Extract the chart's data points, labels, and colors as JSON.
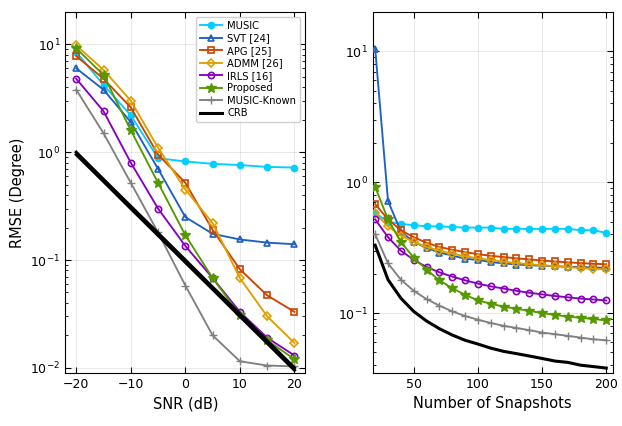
{
  "snr_x": [
    -20,
    -15,
    -10,
    -5,
    0,
    5,
    10,
    15,
    20
  ],
  "snr_music": [
    8.5,
    4.2,
    2.2,
    0.88,
    0.82,
    0.78,
    0.76,
    0.73,
    0.72
  ],
  "snr_svt": [
    6.0,
    3.8,
    1.9,
    0.7,
    0.25,
    0.175,
    0.155,
    0.145,
    0.14
  ],
  "snr_apg": [
    7.8,
    4.8,
    2.6,
    0.95,
    0.52,
    0.19,
    0.082,
    0.047,
    0.033
  ],
  "snr_admm": [
    9.8,
    5.8,
    3.0,
    1.1,
    0.45,
    0.22,
    0.068,
    0.03,
    0.017
  ],
  "snr_irls": [
    4.8,
    2.4,
    0.8,
    0.3,
    0.135,
    0.068,
    0.033,
    0.019,
    0.013
  ],
  "snr_proposed": [
    9.2,
    5.2,
    1.6,
    0.52,
    0.17,
    0.068,
    0.031,
    0.018,
    0.012
  ],
  "snr_musicknown": [
    3.8,
    1.5,
    0.52,
    0.18,
    0.058,
    0.02,
    0.0115,
    0.0105,
    0.0103
  ],
  "snr_crb1": [
    1.0,
    0.56,
    0.315,
    0.178,
    0.1,
    0.056,
    0.0316,
    0.0178,
    0.01
  ],
  "snr_crb2": [
    0.95,
    0.535,
    0.3,
    0.169,
    0.095,
    0.0535,
    0.03,
    0.0169,
    0.0095
  ],
  "snap_x": [
    20,
    30,
    40,
    50,
    60,
    70,
    80,
    90,
    100,
    110,
    120,
    130,
    140,
    150,
    160,
    170,
    180,
    190,
    200
  ],
  "snap_music": [
    0.58,
    0.5,
    0.48,
    0.47,
    0.46,
    0.46,
    0.455,
    0.45,
    0.45,
    0.45,
    0.44,
    0.44,
    0.44,
    0.44,
    0.44,
    0.44,
    0.43,
    0.43,
    0.41
  ],
  "snap_svt": [
    10.5,
    0.72,
    0.42,
    0.35,
    0.315,
    0.29,
    0.275,
    0.26,
    0.255,
    0.245,
    0.24,
    0.235,
    0.232,
    0.23,
    0.228,
    0.226,
    0.225,
    0.223,
    0.222
  ],
  "snap_apg": [
    0.68,
    0.52,
    0.43,
    0.38,
    0.345,
    0.32,
    0.305,
    0.292,
    0.282,
    0.274,
    0.268,
    0.262,
    0.257,
    0.252,
    0.248,
    0.244,
    0.241,
    0.238,
    0.236
  ],
  "snap_admm": [
    0.58,
    0.46,
    0.39,
    0.35,
    0.32,
    0.3,
    0.284,
    0.272,
    0.262,
    0.254,
    0.247,
    0.241,
    0.236,
    0.232,
    0.228,
    0.224,
    0.221,
    0.218,
    0.216
  ],
  "snap_irls": [
    0.52,
    0.38,
    0.3,
    0.255,
    0.225,
    0.205,
    0.19,
    0.178,
    0.168,
    0.16,
    0.154,
    0.148,
    0.143,
    0.139,
    0.135,
    0.132,
    0.129,
    0.127,
    0.125
  ],
  "snap_proposed": [
    0.92,
    0.52,
    0.35,
    0.265,
    0.215,
    0.178,
    0.155,
    0.138,
    0.125,
    0.118,
    0.112,
    0.108,
    0.104,
    0.1,
    0.097,
    0.094,
    0.092,
    0.09,
    0.088
  ],
  "snap_musicknown": [
    0.4,
    0.24,
    0.18,
    0.148,
    0.128,
    0.114,
    0.103,
    0.095,
    0.089,
    0.084,
    0.08,
    0.077,
    0.074,
    0.071,
    0.069,
    0.067,
    0.065,
    0.063,
    0.062
  ],
  "snap_crb": [
    0.33,
    0.18,
    0.13,
    0.103,
    0.087,
    0.076,
    0.068,
    0.062,
    0.058,
    0.054,
    0.051,
    0.049,
    0.047,
    0.045,
    0.043,
    0.042,
    0.04,
    0.039,
    0.038
  ],
  "color_music": "#00CFFF",
  "color_svt": "#2060C0",
  "color_apg": "#CC4400",
  "color_admm": "#DDA000",
  "color_irls": "#8800BB",
  "color_proposed": "#559900",
  "color_musicknown": "#808080",
  "color_crb": "#000000",
  "xlabel1": "SNR (dB)",
  "xlabel2": "Number of Snapshots",
  "ylabel": "RMSE (Degree)",
  "ylim1": [
    0.009,
    20
  ],
  "ylim2": [
    0.035,
    20
  ],
  "xlim1": [
    -22,
    22
  ],
  "xlim2": [
    18,
    205
  ],
  "xticks1": [
    -20,
    -10,
    0,
    10,
    20
  ],
  "xticks2": [
    50,
    100,
    150,
    200
  ],
  "yticks1": [
    0.01,
    0.1,
    1,
    10
  ],
  "yticks2": [
    0.1,
    1,
    10
  ]
}
